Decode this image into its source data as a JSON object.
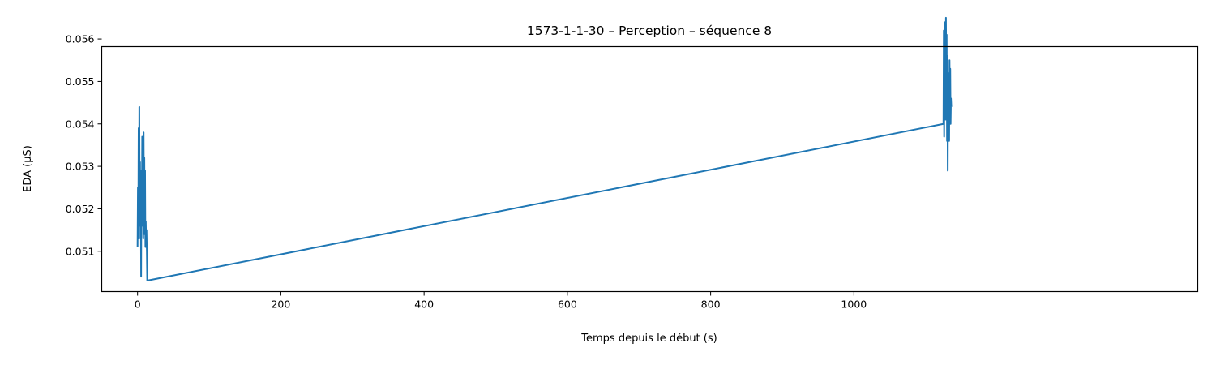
{
  "chart_data": {
    "type": "line",
    "title": "1573-1-1-30 – Perception – séquence 8",
    "xlabel": "Temps depuis le début (s)",
    "ylabel": "EDA (µS)",
    "xlim": [
      -50,
      1480
    ],
    "ylim": [
      0.05005,
      0.05582
    ],
    "xticks": [
      0,
      200,
      400,
      600,
      800,
      1000
    ],
    "yticks": [
      0.051,
      0.052,
      0.053,
      0.054,
      0.055,
      0.056
    ],
    "xtick_labels": [
      "0",
      "200",
      "400",
      "600",
      "800",
      "1000"
    ],
    "ytick_labels": [
      "0.051",
      "0.052",
      "0.053",
      "0.054",
      "0.055",
      "0.056"
    ],
    "grid": false,
    "legend": "none",
    "series_color": "#1f77b4",
    "series": [
      {
        "x": [
          0,
          0.5,
          1,
          1.5,
          2,
          2.5,
          3,
          3.5,
          4,
          4.5,
          5,
          5.5,
          6,
          6.5,
          7,
          7.5,
          8,
          8.5,
          9,
          9.5,
          10,
          10.5,
          11,
          11.5,
          12,
          12.5,
          13,
          13.5,
          14,
          1125,
          1125.5,
          1126,
          1126.5,
          1127,
          1127.5,
          1128,
          1128.5,
          1129,
          1129.5,
          1130,
          1130.5,
          1131,
          1131.5,
          1132,
          1132.5,
          1133,
          1133.5,
          1134,
          1134.5,
          1135,
          1135.5,
          1136
        ],
        "y": [
          0.0511,
          0.0525,
          0.0513,
          0.0539,
          0.0516,
          0.0544,
          0.0519,
          0.0531,
          0.0513,
          0.0527,
          0.0504,
          0.0529,
          0.0516,
          0.0537,
          0.0518,
          0.0532,
          0.0513,
          0.0538,
          0.052,
          0.0532,
          0.0514,
          0.0529,
          0.0511,
          0.0517,
          0.0512,
          0.0515,
          0.051,
          0.05031,
          0.05031,
          0.054,
          0.0562,
          0.0537,
          0.0558,
          0.0544,
          0.0564,
          0.0541,
          0.0565,
          0.0552,
          0.0561,
          0.0536,
          0.0556,
          0.0529,
          0.0552,
          0.0541,
          0.0549,
          0.0536,
          0.0555,
          0.0543,
          0.0553,
          0.054,
          0.0546,
          0.0544
        ]
      }
    ]
  }
}
